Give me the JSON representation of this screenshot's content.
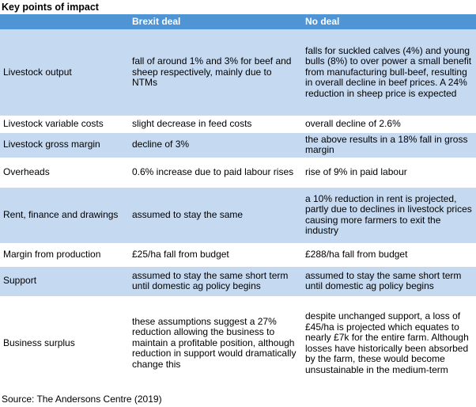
{
  "title": "Key points of impact",
  "table": {
    "header": [
      "Brexit deal",
      "No deal"
    ],
    "rows": [
      [
        "Livestock output",
        "fall of around 1% and 3% for beef and sheep respectively, mainly due to NTMs",
        "falls for suckled calves (4%) and young bulls (8%) to over power a small benefit from manufacturing bull-beef, resulting in overall decline in beef prices. A 24% reduction in sheep price is expected"
      ],
      [
        "Livestock variable costs",
        "slight decrease in feed costs",
        "overall decline of 2.6%"
      ],
      [
        "Livestock gross margin",
        "decline of 3%",
        "the above results in a 18% fall in gross margin"
      ],
      [
        "Overheads",
        "0.6% increase due to paid labour rises",
        "rise of 9% in paid labour"
      ],
      [
        "Rent, finance and drawings",
        "assumed to stay the same",
        "a 10% reduction in rent is projected, partly due to declines in livestock prices causing more farmers to exit the industry"
      ],
      [
        "Margin from production",
        "£25/ha fall from budget",
        "£288/ha fall from budget"
      ],
      [
        "Support",
        "assumed to stay the same short term until domestic ag policy begins",
        "assumed to stay the same short term until domestic ag policy begins"
      ],
      [
        "Business surplus",
        "these assumptions suggest a 27% reduction allowing the business to maintain a profitable position, although reduction in support would dramatically change this",
        "despite unchanged support, a loss of £45/ha is projected which equates to nearly £7k for the entire farm. Although losses have historically been absorbed by the farm, these would become unsustainable in the medium-term"
      ]
    ]
  },
  "source": "Source: The Andersons Centre (2019)"
}
